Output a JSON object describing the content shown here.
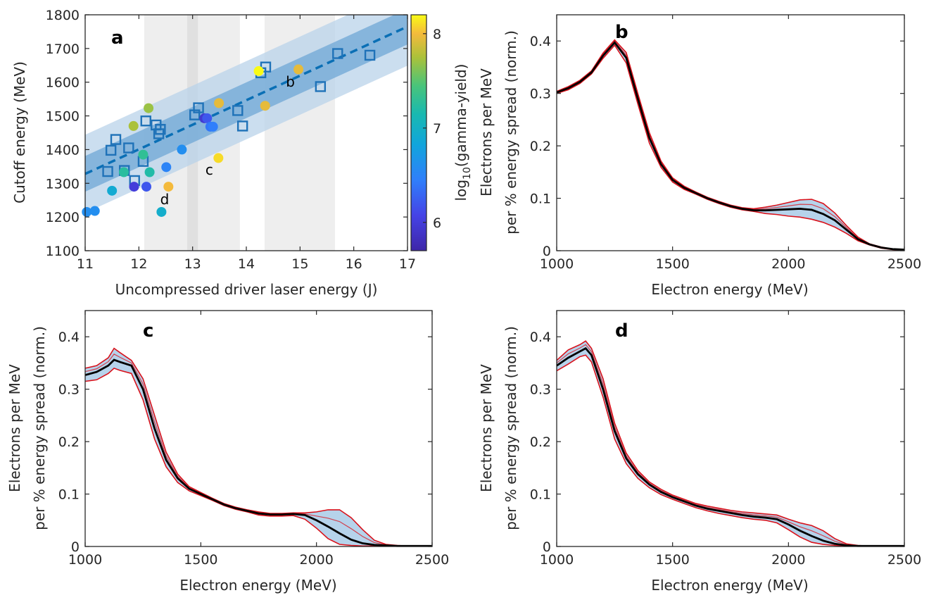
{
  "colors": {
    "band_outer": "#b9d3ea",
    "band_inner": "#6fa7d6",
    "fit_line": "#0a6fb5",
    "square_marker": "#1f72b8",
    "shade": "#eeeeee",
    "shade_dark": "#e0e0e0",
    "mean_line": "#000000",
    "bound_line": "#d9121b",
    "spread_fill": "#a9cbe8"
  },
  "chart_data": [
    {
      "type": "scatter",
      "panel_label": "a",
      "xlabel": "Uncompressed driver laser energy (J)",
      "ylabel": "Cutoff energy (MeV)",
      "xlim": [
        11,
        17
      ],
      "ylim": [
        1100,
        1800
      ],
      "x_ticks": [
        "11",
        "12",
        "13",
        "14",
        "15",
        "16",
        "17"
      ],
      "y_ticks": [
        "1100",
        "1200",
        "1300",
        "1400",
        "1500",
        "1600",
        "1700",
        "1800"
      ],
      "shaded_x_ranges": [
        [
          12.1,
          13.88
        ],
        [
          14.34,
          15.65
        ]
      ],
      "dark_shaded_x_range": [
        12.9,
        13.1
      ],
      "fit": {
        "x": [
          11,
          17
        ],
        "y": [
          1328,
          1765
        ]
      },
      "band_inner_halfwidth": 53,
      "band_outer_halfwidth": 116,
      "squares": {
        "x": [
          11.42,
          11.48,
          11.57,
          11.73,
          11.81,
          11.92,
          12.08,
          12.13,
          12.32,
          12.37,
          12.4,
          13.04,
          13.11,
          13.84,
          13.93,
          14.27,
          14.36,
          15.38,
          15.7,
          16.3
        ],
        "y": [
          1335,
          1398,
          1430,
          1338,
          1405,
          1308,
          1365,
          1485,
          1473,
          1447,
          1460,
          1503,
          1524,
          1516,
          1470,
          1628,
          1645,
          1587,
          1685,
          1680
        ]
      },
      "circles": {
        "x": [
          11.03,
          11.18,
          11.5,
          11.72,
          11.9,
          11.91,
          12.08,
          12.14,
          12.18,
          12.2,
          12.42,
          12.51,
          12.55,
          12.8,
          13.22,
          13.27,
          13.33,
          13.38,
          13.48,
          13.49,
          14.23,
          14.35,
          14.97
        ],
        "y": [
          1215,
          1218,
          1278,
          1333,
          1470,
          1290,
          1385,
          1290,
          1523,
          1333,
          1215,
          1348,
          1290,
          1400,
          1493,
          1493,
          1468,
          1468,
          1375,
          1538,
          1633,
          1530,
          1638
        ],
        "log10_gamma_yield": [
          6.6,
          6.6,
          6.9,
          7.25,
          7.75,
          6.0,
          7.3,
          6.2,
          7.7,
          7.2,
          6.95,
          6.5,
          8.0,
          6.6,
          5.95,
          6.2,
          6.4,
          6.45,
          8.1,
          7.95,
          8.2,
          7.95,
          7.95
        ]
      },
      "annotations": [
        {
          "text": "b",
          "x": 14.82,
          "y": 1602
        },
        {
          "text": "c",
          "x": 13.31,
          "y": 1340
        },
        {
          "text": "d",
          "x": 12.48,
          "y": 1253
        }
      ],
      "colorbar": {
        "label_base": "log",
        "label_sub": "10",
        "label_rest": "(gamma-yield)",
        "range": [
          5.7,
          8.2
        ],
        "ticks": [
          "6",
          "7",
          "8"
        ],
        "colormap": "parula"
      }
    },
    {
      "type": "line",
      "panel_label": "b",
      "xlabel": "Electron energy (MeV)",
      "ylabel_line1": "Electrons per MeV",
      "ylabel_line2": "per % energy spread (norm.)",
      "xlim": [
        1000,
        2500
      ],
      "ylim": [
        0,
        0.45
      ],
      "x_ticks": [
        "1000",
        "1500",
        "2000",
        "2500"
      ],
      "y_ticks": [
        "0",
        "0.1",
        "0.2",
        "0.3",
        "0.4"
      ],
      "x": [
        1000,
        1050,
        1100,
        1150,
        1200,
        1250,
        1300,
        1350,
        1400,
        1450,
        1500,
        1550,
        1600,
        1650,
        1700,
        1750,
        1800,
        1850,
        1900,
        1950,
        2000,
        2050,
        2100,
        2150,
        2200,
        2250,
        2300,
        2350,
        2400,
        2450,
        2500
      ],
      "series": [
        {
          "role": "mean",
          "values": [
            0.302,
            0.31,
            0.322,
            0.34,
            0.372,
            0.397,
            0.368,
            0.29,
            0.215,
            0.165,
            0.135,
            0.12,
            0.11,
            0.1,
            0.092,
            0.085,
            0.08,
            0.077,
            0.077,
            0.078,
            0.079,
            0.08,
            0.078,
            0.07,
            0.058,
            0.04,
            0.022,
            0.012,
            0.006,
            0.003,
            0.002
          ]
        },
        {
          "role": "upper",
          "values": [
            0.304,
            0.313,
            0.325,
            0.343,
            0.377,
            0.402,
            0.378,
            0.3,
            0.225,
            0.171,
            0.139,
            0.123,
            0.112,
            0.102,
            0.094,
            0.087,
            0.082,
            0.08,
            0.083,
            0.087,
            0.092,
            0.097,
            0.098,
            0.09,
            0.072,
            0.048,
            0.026,
            0.013,
            0.007,
            0.003,
            0.002
          ]
        },
        {
          "role": "lower",
          "values": [
            0.3,
            0.307,
            0.319,
            0.337,
            0.367,
            0.392,
            0.358,
            0.28,
            0.205,
            0.159,
            0.131,
            0.117,
            0.108,
            0.098,
            0.09,
            0.083,
            0.078,
            0.075,
            0.071,
            0.069,
            0.066,
            0.064,
            0.06,
            0.054,
            0.045,
            0.033,
            0.019,
            0.011,
            0.005,
            0.002,
            0.001
          ]
        }
      ]
    },
    {
      "type": "line",
      "panel_label": "c",
      "xlabel": "Electron energy (MeV)",
      "ylabel_line1": "Electrons per MeV",
      "ylabel_line2": "per % energy spread (norm.)",
      "xlim": [
        1000,
        2500
      ],
      "ylim": [
        0,
        0.45
      ],
      "x_ticks": [
        "1000",
        "1500",
        "2000",
        "2500"
      ],
      "y_ticks": [
        "0",
        "0.1",
        "0.2",
        "0.3",
        "0.4"
      ],
      "x": [
        1000,
        1050,
        1100,
        1125,
        1150,
        1200,
        1250,
        1300,
        1350,
        1400,
        1450,
        1500,
        1550,
        1600,
        1650,
        1700,
        1750,
        1800,
        1850,
        1900,
        1950,
        2000,
        2050,
        2100,
        2150,
        2200,
        2250,
        2300,
        2350,
        2400,
        2450,
        2500
      ],
      "series": [
        {
          "role": "mean",
          "values": [
            0.327,
            0.333,
            0.345,
            0.356,
            0.352,
            0.345,
            0.3,
            0.225,
            0.165,
            0.13,
            0.11,
            0.1,
            0.09,
            0.08,
            0.073,
            0.068,
            0.063,
            0.061,
            0.061,
            0.062,
            0.06,
            0.05,
            0.038,
            0.025,
            0.013,
            0.006,
            0.003,
            0.002,
            0.001,
            0.001,
            0.001,
            0.001
          ]
        },
        {
          "role": "upper",
          "values": [
            0.34,
            0.345,
            0.36,
            0.378,
            0.37,
            0.355,
            0.32,
            0.25,
            0.18,
            0.138,
            0.114,
            0.103,
            0.092,
            0.082,
            0.075,
            0.07,
            0.066,
            0.063,
            0.063,
            0.064,
            0.064,
            0.066,
            0.07,
            0.07,
            0.055,
            0.032,
            0.012,
            0.004,
            0.002,
            0.001,
            0.001,
            0.001
          ]
        },
        {
          "role": "lower",
          "values": [
            0.315,
            0.318,
            0.33,
            0.34,
            0.336,
            0.33,
            0.28,
            0.205,
            0.152,
            0.122,
            0.106,
            0.097,
            0.088,
            0.078,
            0.071,
            0.066,
            0.06,
            0.058,
            0.058,
            0.059,
            0.052,
            0.035,
            0.015,
            0.004,
            0.002,
            0.001,
            0.001,
            0.001,
            0.001,
            0.001,
            0.001,
            0.001
          ]
        }
      ]
    },
    {
      "type": "line",
      "panel_label": "d",
      "xlabel": "Electron energy (MeV)",
      "ylabel_line1": "Electrons per MeV",
      "ylabel_line2": "per % energy spread (norm.)",
      "xlim": [
        1000,
        2500
      ],
      "ylim": [
        0,
        0.45
      ],
      "x_ticks": [
        "1000",
        "1500",
        "2000",
        "2500"
      ],
      "y_ticks": [
        "0",
        "0.1",
        "0.2",
        "0.3",
        "0.4"
      ],
      "x": [
        1000,
        1050,
        1100,
        1125,
        1150,
        1200,
        1250,
        1300,
        1350,
        1400,
        1450,
        1500,
        1550,
        1600,
        1650,
        1700,
        1750,
        1800,
        1850,
        1900,
        1950,
        2000,
        2050,
        2100,
        2150,
        2200,
        2250,
        2300,
        2350,
        2400,
        2450,
        2500
      ],
      "series": [
        {
          "role": "mean",
          "values": [
            0.345,
            0.36,
            0.372,
            0.378,
            0.365,
            0.3,
            0.22,
            0.168,
            0.138,
            0.118,
            0.104,
            0.094,
            0.086,
            0.078,
            0.072,
            0.068,
            0.064,
            0.06,
            0.057,
            0.055,
            0.052,
            0.042,
            0.03,
            0.02,
            0.011,
            0.005,
            0.002,
            0.001,
            0.001,
            0.001,
            0.001,
            0.001
          ]
        },
        {
          "role": "upper",
          "values": [
            0.355,
            0.375,
            0.385,
            0.392,
            0.378,
            0.32,
            0.235,
            0.178,
            0.145,
            0.123,
            0.109,
            0.098,
            0.09,
            0.082,
            0.077,
            0.073,
            0.069,
            0.066,
            0.064,
            0.062,
            0.06,
            0.052,
            0.045,
            0.04,
            0.03,
            0.015,
            0.005,
            0.002,
            0.001,
            0.001,
            0.001,
            0.001
          ]
        },
        {
          "role": "lower",
          "values": [
            0.335,
            0.348,
            0.362,
            0.365,
            0.352,
            0.285,
            0.205,
            0.158,
            0.13,
            0.112,
            0.099,
            0.09,
            0.082,
            0.074,
            0.068,
            0.063,
            0.059,
            0.055,
            0.052,
            0.05,
            0.045,
            0.032,
            0.018,
            0.008,
            0.004,
            0.002,
            0.001,
            0.001,
            0.001,
            0.001,
            0.001,
            0.001
          ]
        }
      ]
    }
  ]
}
